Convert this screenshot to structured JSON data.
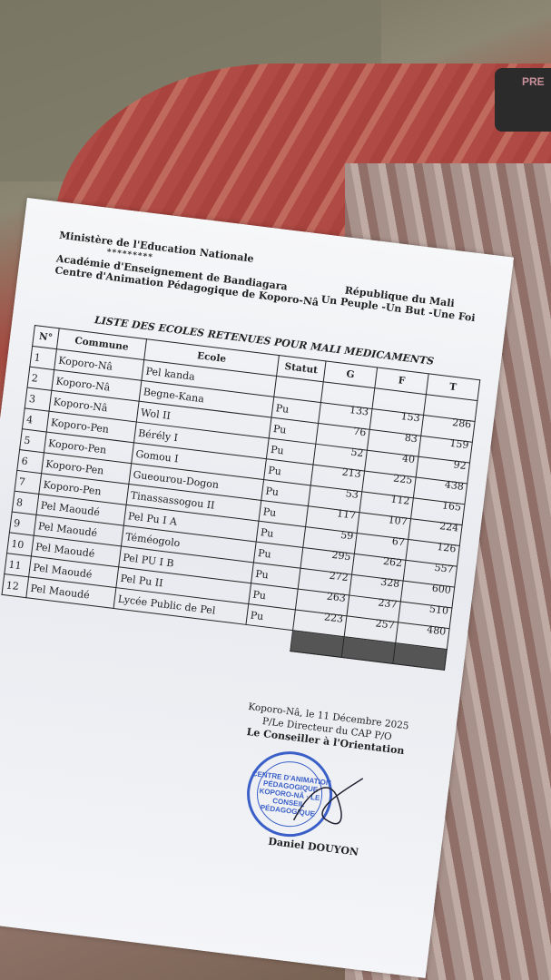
{
  "header_left": {
    "ministry": "Ministère de l'Education Nationale",
    "stars": "*********",
    "academy": "Académie d'Enseignement de Bandiagara",
    "center": "Centre d'Animation Pédagogique de Koporo-Nâ"
  },
  "header_right": {
    "republic": "République du Mali",
    "motto": "Un Peuple -Un But -Une Foi"
  },
  "title": "LISTE DES ECOLES RETENUES POUR MALI MEDICAMENTS",
  "table": {
    "headers": [
      "N°",
      "Commune",
      "Ecole",
      "Statut",
      "G",
      "F",
      "T"
    ],
    "rows": [
      {
        "n": "1",
        "commune": "Koporo-Nâ",
        "ecole": "Pel kanda",
        "statut": "",
        "g": "",
        "f": "",
        "t": ""
      },
      {
        "n": "2",
        "commune": "Koporo-Nâ",
        "ecole": "Begne-Kana",
        "statut": "Pu",
        "g": "133",
        "f": "153",
        "t": "286"
      },
      {
        "n": "3",
        "commune": "Koporo-Nâ",
        "ecole": "Wol II",
        "statut": "Pu",
        "g": "76",
        "f": "83",
        "t": "159"
      },
      {
        "n": "4",
        "commune": "Koporo-Pen",
        "ecole": "Bérély I",
        "statut": "Pu",
        "g": "52",
        "f": "40",
        "t": "92"
      },
      {
        "n": "5",
        "commune": "Koporo-Pen",
        "ecole": "Gomou I",
        "statut": "Pu",
        "g": "213",
        "f": "225",
        "t": "438"
      },
      {
        "n": "6",
        "commune": "Koporo-Pen",
        "ecole": "Gueourou-Dogon",
        "statut": "Pu",
        "g": "53",
        "f": "112",
        "t": "165"
      },
      {
        "n": "7",
        "commune": "Koporo-Pen",
        "ecole": "Tinassassogou II",
        "statut": "Pu",
        "g": "117",
        "f": "107",
        "t": "224"
      },
      {
        "n": "8",
        "commune": "Pel Maoudé",
        "ecole": "Pel Pu I A",
        "statut": "Pu",
        "g": "59",
        "f": "67",
        "t": "126"
      },
      {
        "n": "9",
        "commune": "Pel Maoudé",
        "ecole": "Téméogolo",
        "statut": "Pu",
        "g": "295",
        "f": "262",
        "t": "557"
      },
      {
        "n": "10",
        "commune": "Pel Maoudé",
        "ecole": "Pel PU I B",
        "statut": "Pu",
        "g": "272",
        "f": "328",
        "t": "600"
      },
      {
        "n": "11",
        "commune": "Pel Maoudé",
        "ecole": "Pel Pu II",
        "statut": "Pu",
        "g": "263",
        "f": "237",
        "t": "510"
      },
      {
        "n": "12",
        "commune": "Pel Maoudé",
        "ecole": "Lycée Public de Pel",
        "statut": "Pu",
        "g": "223",
        "f": "257",
        "t": "480"
      }
    ]
  },
  "signature": {
    "place_date": "Koporo-Nâ, le 11 Décembre 2025",
    "for_director": "P/Le Directeur du CAP P/O",
    "role": "Le Conseiller à l'Orientation",
    "name": "Daniel DOUYON",
    "stamp_text": "CENTRE D'ANIMATION PÉDAGOGIQUE KOPORO-NÂ · LE CONSEIL PÉDAGOGIQUE"
  },
  "car_button": "PRE",
  "colors": {
    "stamp": "#3a5fc8",
    "paper": "#f2f3f6"
  }
}
